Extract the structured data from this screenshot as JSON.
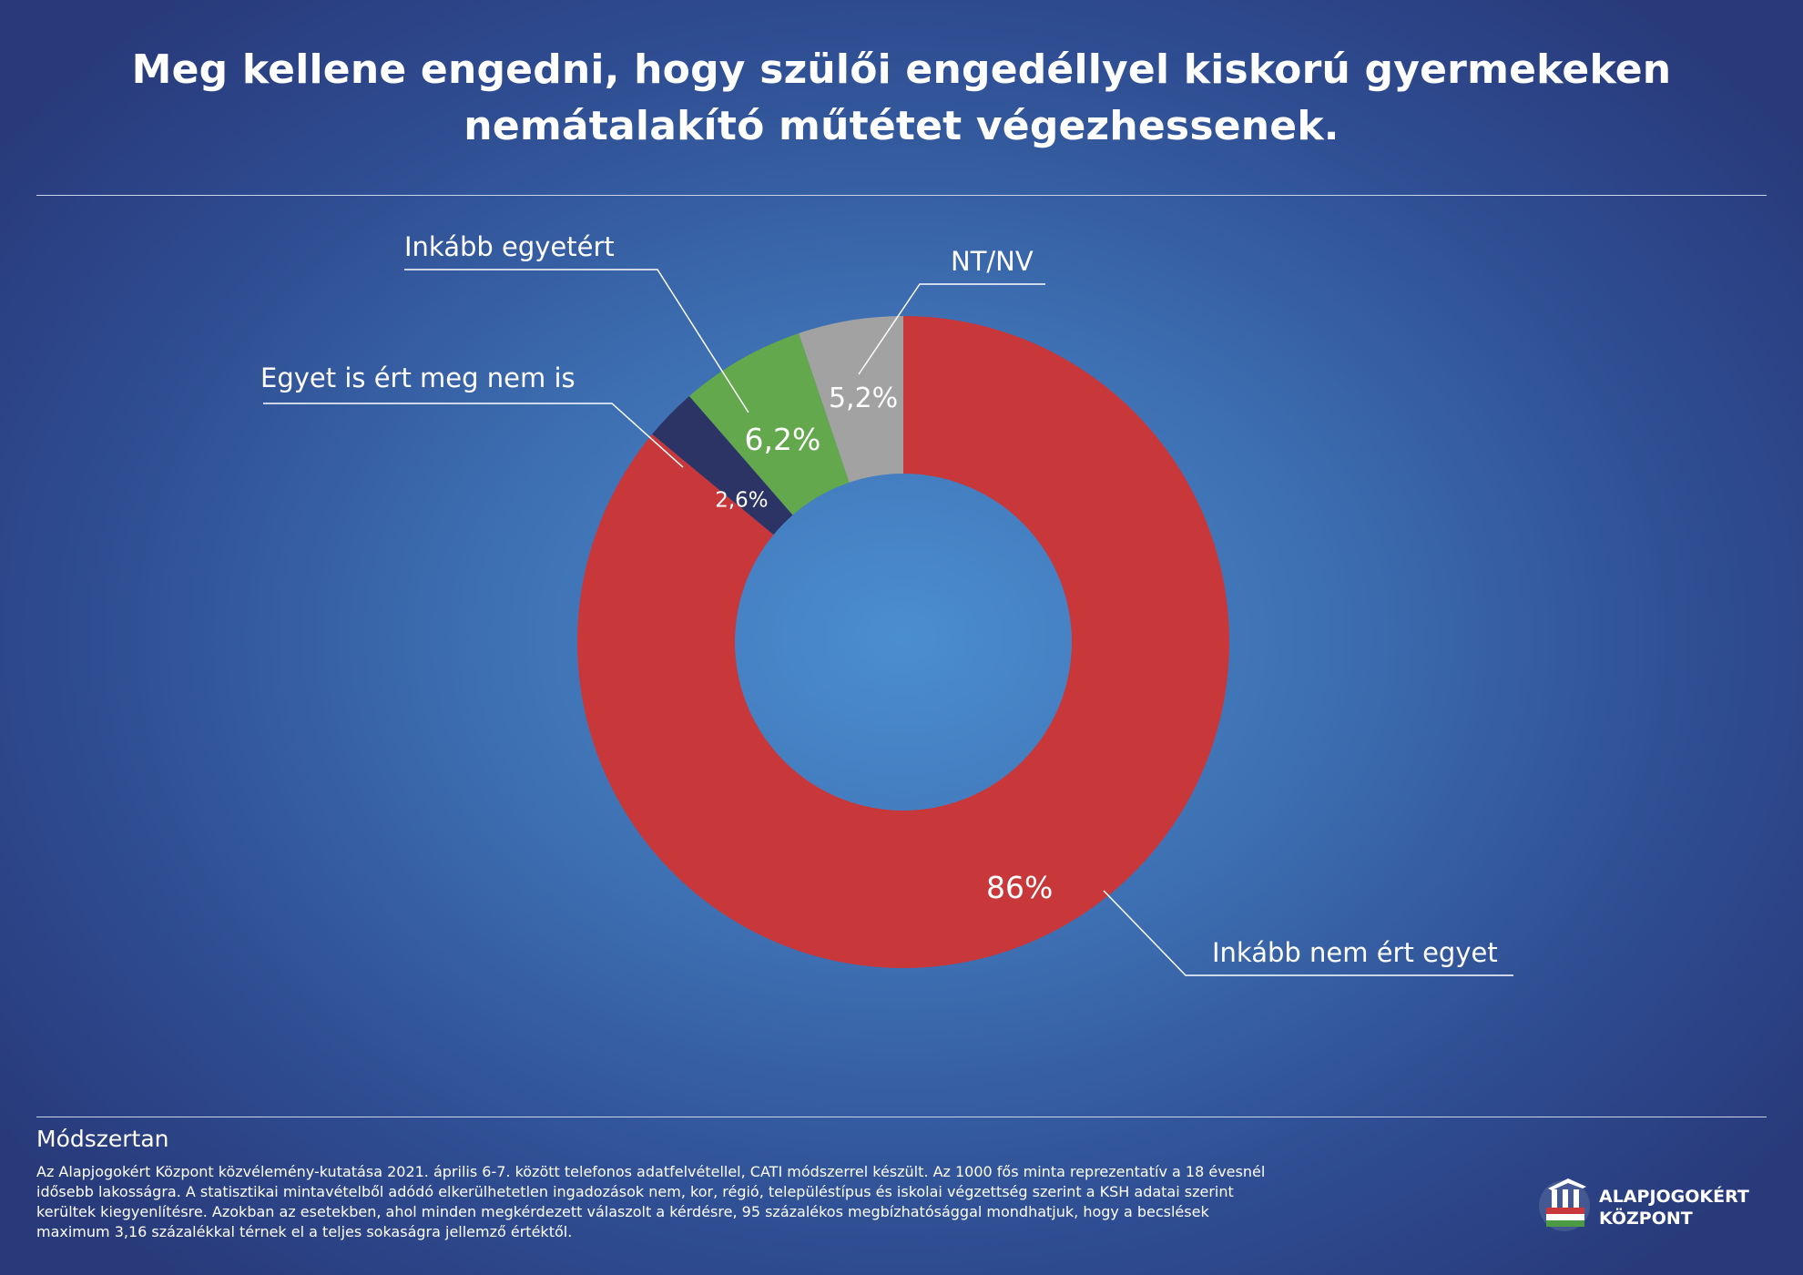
{
  "title_lines": [
    "Meg kellene engedni, hogy szülői engedéllyel kiskorú gyermekeken",
    "nemátalakító műtétet végezhessenek."
  ],
  "colors": {
    "red": "#c8383a",
    "navy": "#2c3466",
    "green": "#63a84d",
    "gray": "#a2a2a2"
  },
  "chart_data": {
    "type": "pie",
    "style": "donut",
    "slices": [
      {
        "label": "Inkább nem ért egyet",
        "value": 86,
        "value_label": "86%",
        "color": "#c8383a"
      },
      {
        "label": "Egyet is ért meg nem is",
        "value": 2.6,
        "value_label": "2,6%",
        "color": "#2c3466"
      },
      {
        "label": "Inkább egyetért",
        "value": 6.2,
        "value_label": "6,2%",
        "color": "#63a84d"
      },
      {
        "label": "NT/NV",
        "value": 5.2,
        "value_label": "5,2%",
        "color": "#a2a2a2"
      }
    ]
  },
  "methodology": {
    "heading": "Módszertan",
    "lines": [
      "Az Alapjogokért Központ közvélemény-kutatása 2021. április 6-7. között telefonos adatfelvétellel, CATI módszerrel készült. Az 1000 fős minta reprezentatív a 18 évesnél",
      "idősebb lakosságra. A statisztikai mintavételből adódó elkerülhetetlen ingadozások nem, kor, régió, településtípus és iskolai végzettség szerint a KSH adatai szerint",
      "kerültek kiegyenlítésre. Azokban az esetekben, ahol minden megkérdezett válaszolt a kérdésre, 95 százalékos megbízhatósággal mondhatjuk, hogy a becslések",
      "maximum 3,16 százalékkal térnek el a teljes sokaságra jellemző értéktől."
    ]
  },
  "logo": {
    "line1": "ALAPJOGOKÉRT",
    "line2": "KÖZPONT"
  }
}
